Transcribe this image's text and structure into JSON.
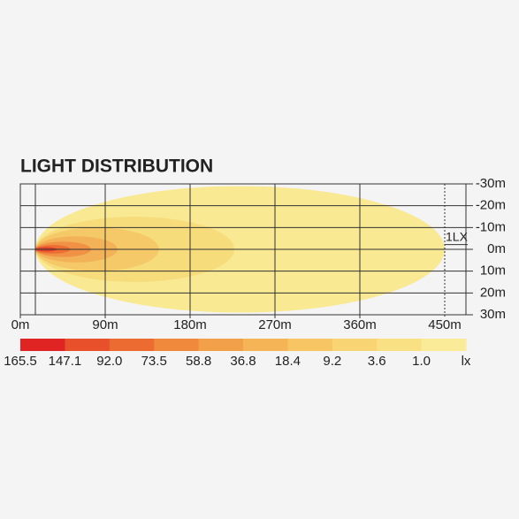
{
  "chart_data": {
    "type": "light-distribution",
    "title": "LIGHT DISTRIBUTION",
    "xlim": [
      0,
      472.5
    ],
    "ylim": [
      -30,
      30
    ],
    "xticks": [
      {
        "value": 0,
        "label": "0m"
      },
      {
        "value": 90,
        "label": "90m"
      },
      {
        "value": 180,
        "label": "180m"
      },
      {
        "value": 270,
        "label": "270m"
      },
      {
        "value": 360,
        "label": "360m"
      },
      {
        "value": 450,
        "label": "450m"
      }
    ],
    "yticks": [
      {
        "value": -30,
        "label": "-30m"
      },
      {
        "value": -20,
        "label": "-20m"
      },
      {
        "value": -10,
        "label": "-10m"
      },
      {
        "value": 0,
        "label": "0m"
      },
      {
        "value": 10,
        "label": "10m"
      },
      {
        "value": 20,
        "label": "20m"
      },
      {
        "value": 30,
        "label": "30m"
      }
    ],
    "contours": {
      "x_start": [
        16,
        16,
        16,
        16,
        16,
        16,
        16
      ],
      "x_end": [
        450,
        227,
        147,
        103,
        75,
        53,
        39
      ],
      "half_width": [
        29,
        15,
        10,
        6,
        3.5,
        2,
        1
      ],
      "colors": [
        "#f8e992",
        "#f7dc7c",
        "#f5c868",
        "#f3b257",
        "#f09146",
        "#ec6e33",
        "#e0402a"
      ]
    },
    "annotation": {
      "text": "1LX",
      "x": 450,
      "y": -5
    },
    "colorbar": {
      "levels": [
        165.5,
        147.1,
        {
          "value": 92,
          "label": "92.0"
        },
        73.5,
        58.8,
        36.8,
        18.4,
        9.2,
        3.6,
        {
          "value": 1,
          "label": "1.0"
        }
      ],
      "colors": [
        "#e02423",
        "#e8502b",
        "#ec6b31",
        "#f0893b",
        "#f3a04a",
        "#f5b556",
        "#f7c563",
        "#f8d472",
        "#f9e183",
        "#faeb98"
      ],
      "unit": "lx"
    }
  }
}
